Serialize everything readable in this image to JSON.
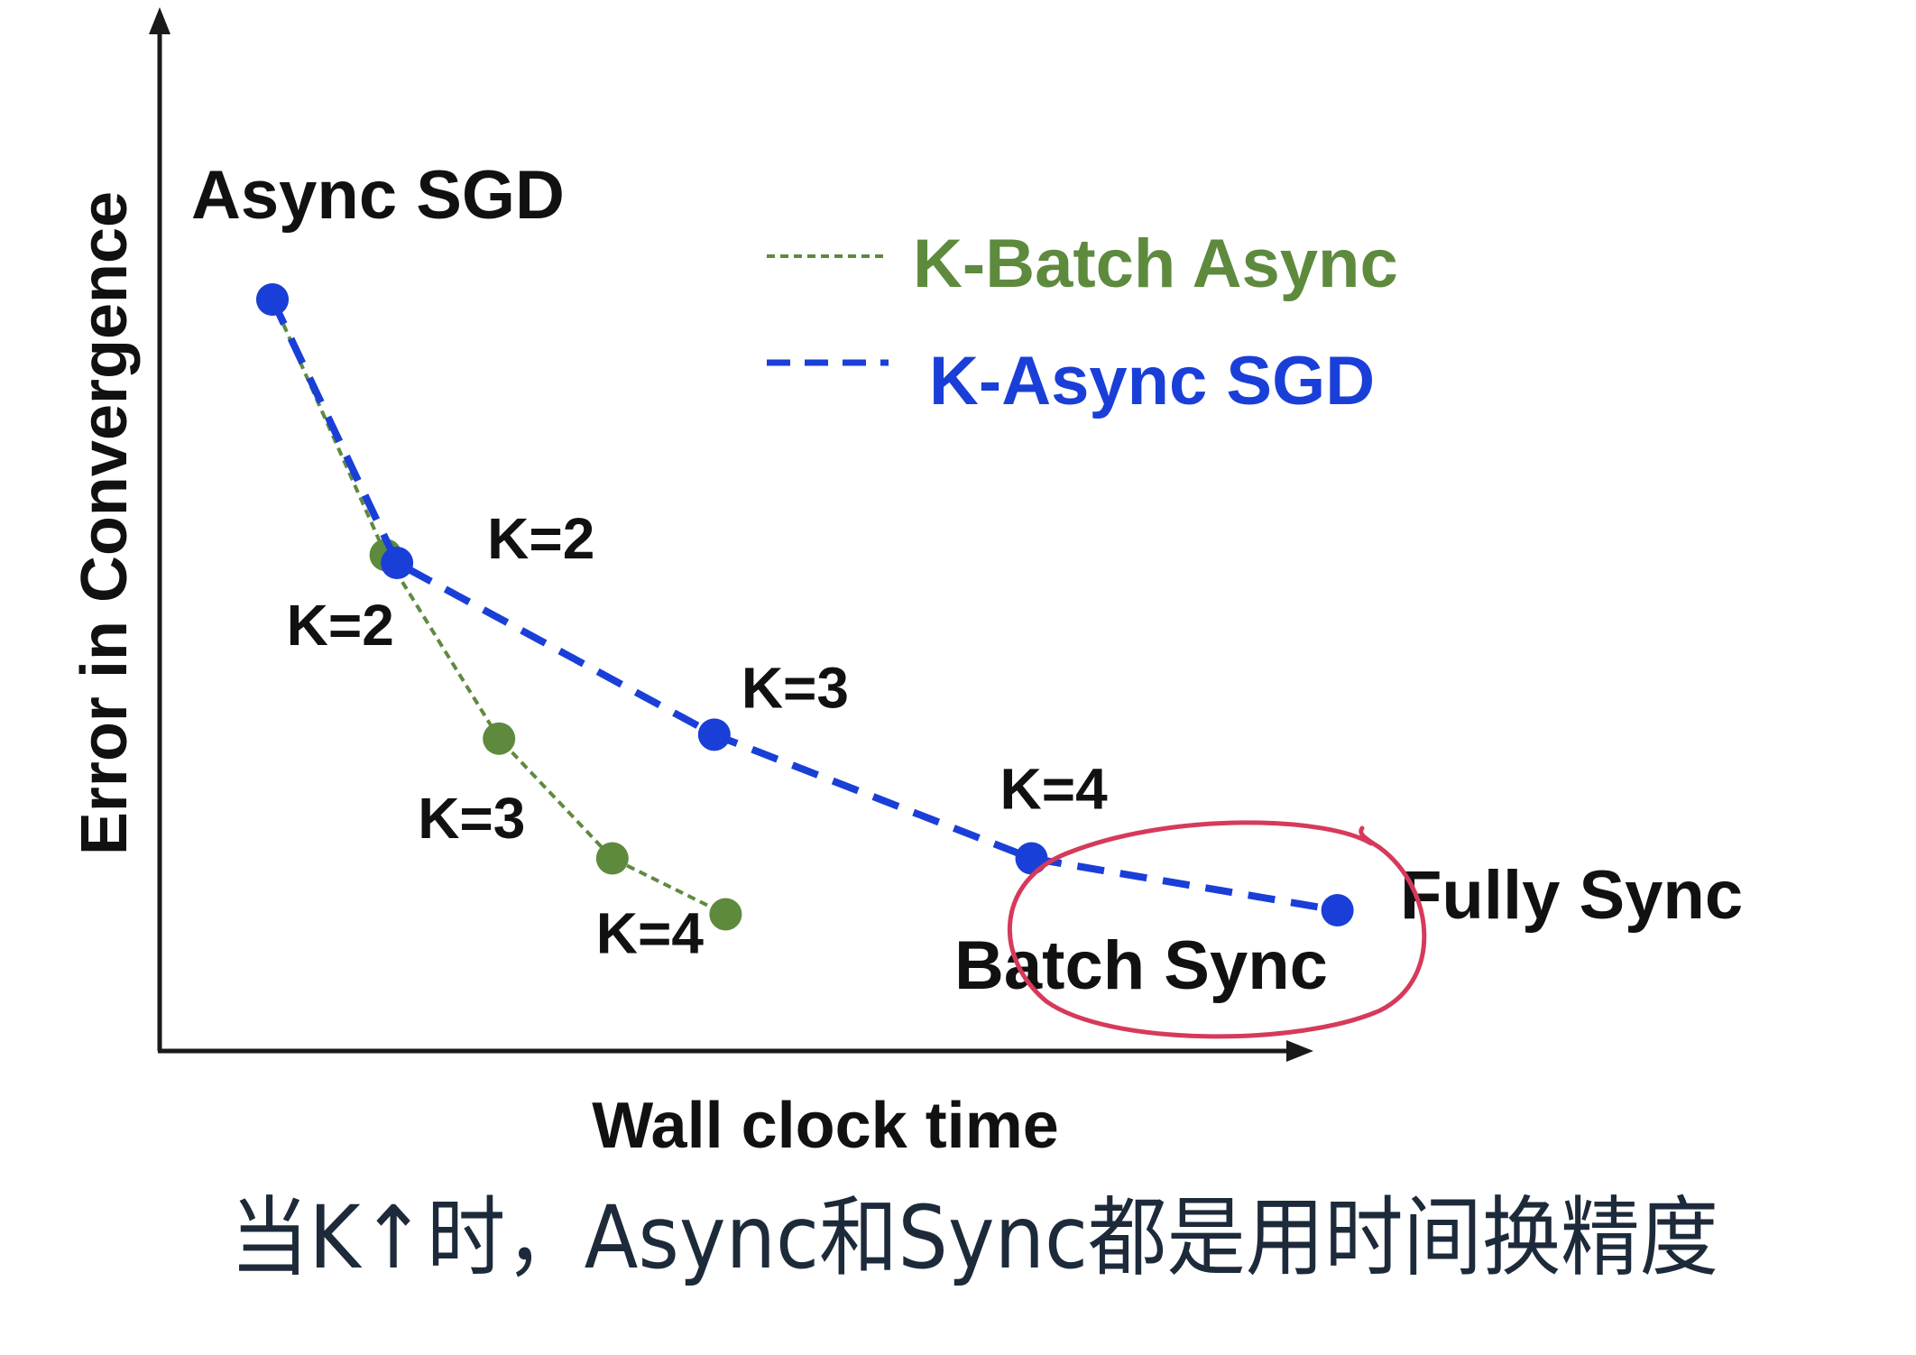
{
  "chart_data": {
    "type": "line",
    "xlabel": "Wall clock time",
    "ylabel": "Error in Convergence",
    "start_label": "Async SGD",
    "series": [
      {
        "name": "K-Batch Async",
        "color": "#5e8a3e",
        "style": "fine-dashed",
        "x": [
          1,
          2,
          3,
          4,
          5
        ],
        "y": [
          10.0,
          6.8,
          4.5,
          3.0,
          2.3
        ],
        "point_labels": [
          "",
          "K=2",
          "K=3",
          "K=4",
          ""
        ],
        "end_label": "Batch Sync"
      },
      {
        "name": "K-Async SGD",
        "color": "#1a3fd8",
        "style": "long-dashed",
        "x": [
          1,
          2.1,
          4.9,
          7.7,
          10.4
        ],
        "y": [
          10.0,
          6.7,
          4.55,
          3.0,
          2.35
        ],
        "point_labels": [
          "",
          "K=2",
          "K=3",
          "K=4",
          ""
        ],
        "end_label": "Fully Sync"
      }
    ],
    "legend": "top-right",
    "grid": false,
    "axes_ticks": false,
    "annotations": {
      "circle_color": "#d63a5a",
      "circled_label": "Batch Sync",
      "handwritten_note": "当K↑时，Async和Sync都是用时间换精度"
    }
  }
}
